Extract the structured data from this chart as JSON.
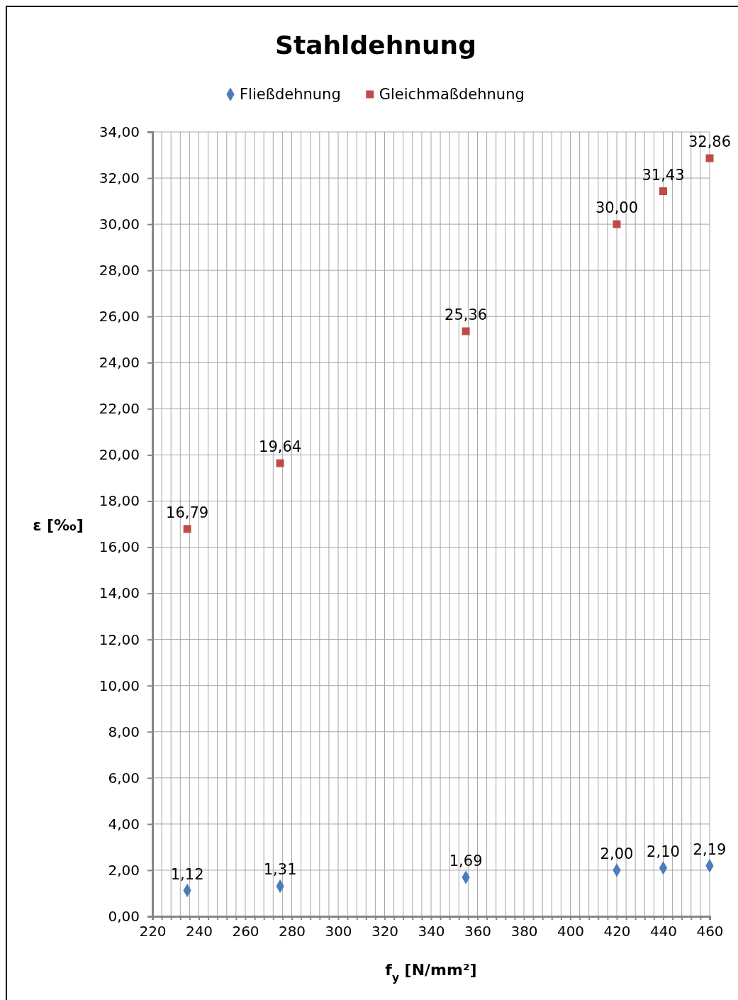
{
  "chart_data": {
    "type": "scatter",
    "title": "Stahldehnung",
    "xlabel": "f$_{y}$ [N/mm²]",
    "ylabel": "ε [‰]",
    "x": [
      235,
      275,
      355,
      420,
      440,
      460
    ],
    "series": [
      {
        "name": "Fließdehnung",
        "color": "#4a7ebb",
        "marker": "diamond",
        "values": [
          1.12,
          1.31,
          1.69,
          2.0,
          2.1,
          2.19
        ],
        "value_labels": [
          "1,12",
          "1,31",
          "1,69",
          "2,00",
          "2,10",
          "2,19"
        ]
      },
      {
        "name": "Gleichmaßdehnung",
        "color": "#be4b48",
        "marker": "square",
        "values": [
          16.79,
          19.64,
          25.36,
          30.0,
          31.43,
          32.86
        ],
        "value_labels": [
          "16,79",
          "19,64",
          "25,36",
          "30,00",
          "31,43",
          "32,86"
        ]
      }
    ],
    "xlim": [
      220,
      460
    ],
    "xticks": [
      220,
      {
        "value": 224,
        "label": null
      },
      {
        "value": 228,
        "label": null
      },
      {
        "value": 232,
        "label": null
      },
      {
        "value": 236,
        "label": null
      },
      240,
      {
        "value": 244,
        "label": null
      },
      {
        "value": 248,
        "label": null
      },
      {
        "value": 252,
        "label": null
      },
      {
        "value": 256,
        "label": null
      },
      260,
      {
        "value": 264,
        "label": null
      },
      {
        "value": 268,
        "label": null
      },
      {
        "value": 272,
        "label": null
      },
      {
        "value": 276,
        "label": null
      },
      280,
      {
        "value": 284,
        "label": null
      },
      {
        "value": 288,
        "label": null
      },
      {
        "value": 292,
        "label": null
      },
      {
        "value": 296,
        "label": null
      },
      300,
      {
        "value": 304,
        "label": null
      },
      {
        "value": 308,
        "label": null
      },
      {
        "value": 312,
        "label": null
      },
      {
        "value": 316,
        "label": null
      },
      320,
      {
        "value": 324,
        "label": null
      },
      {
        "value": 328,
        "label": null
      },
      {
        "value": 332,
        "label": null
      },
      {
        "value": 336,
        "label": null
      },
      340,
      {
        "value": 344,
        "label": null
      },
      {
        "value": 348,
        "label": null
      },
      {
        "value": 352,
        "label": null
      },
      {
        "value": 356,
        "label": null
      },
      360,
      {
        "value": 364,
        "label": null
      },
      {
        "value": 368,
        "label": null
      },
      {
        "value": 372,
        "label": null
      },
      {
        "value": 376,
        "label": null
      },
      380,
      {
        "value": 384,
        "label": null
      },
      {
        "value": 388,
        "label": null
      },
      {
        "value": 392,
        "label": null
      },
      {
        "value": 396,
        "label": null
      },
      400,
      {
        "value": 404,
        "label": null
      },
      {
        "value": 408,
        "label": null
      },
      {
        "value": 412,
        "label": null
      },
      {
        "value": 416,
        "label": null
      },
      420,
      {
        "value": 424,
        "label": null
      },
      {
        "value": 428,
        "label": null
      },
      {
        "value": 432,
        "label": null
      },
      {
        "value": 436,
        "label": null
      },
      440,
      {
        "value": 444,
        "label": null
      },
      {
        "value": 448,
        "label": null
      },
      {
        "value": 452,
        "label": null
      },
      {
        "value": 456,
        "label": null
      },
      460
    ],
    "ylim": [
      0,
      34
    ],
    "yticks": [
      {
        "value": 0,
        "label": "0,00"
      },
      {
        "value": 2,
        "label": "2,00"
      },
      {
        "value": 4,
        "label": "4,00"
      },
      {
        "value": 6,
        "label": "6,00"
      },
      {
        "value": 8,
        "label": "8,00"
      },
      {
        "value": 10,
        "label": "10,00"
      },
      {
        "value": 12,
        "label": "12,00"
      },
      {
        "value": 14,
        "label": "14,00"
      },
      {
        "value": 16,
        "label": "16,00"
      },
      {
        "value": 18,
        "label": "18,00"
      },
      {
        "value": 20,
        "label": "20,00"
      },
      {
        "value": 22,
        "label": "22,00"
      },
      {
        "value": 24,
        "label": "24,00"
      },
      {
        "value": 26,
        "label": "26,00"
      },
      {
        "value": 28,
        "label": "28,00"
      },
      {
        "value": 30,
        "label": "30,00"
      },
      {
        "value": 32,
        "label": "32,00"
      },
      {
        "value": 34,
        "label": "34,00"
      }
    ],
    "grid": true,
    "legend": "top"
  }
}
